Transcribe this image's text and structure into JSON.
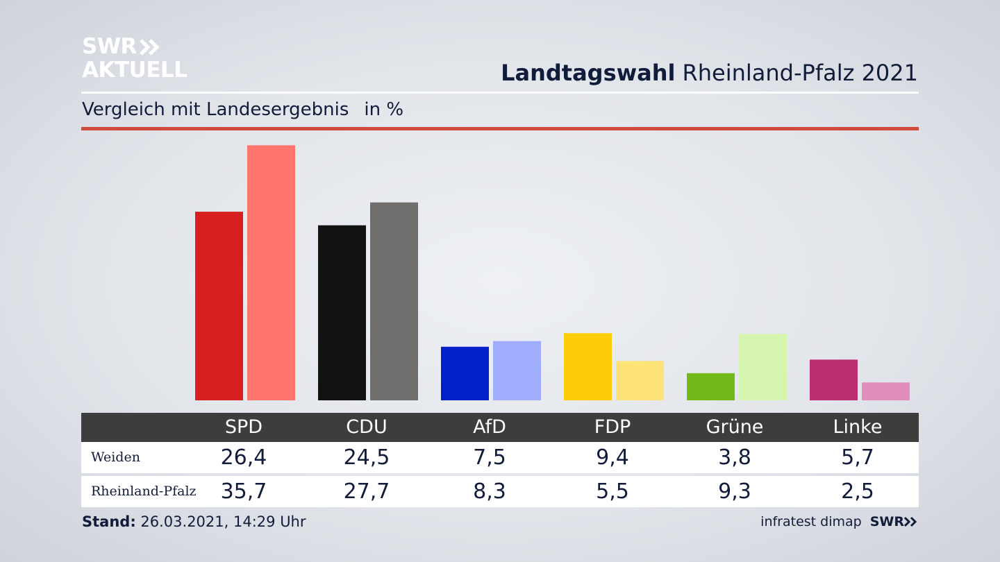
{
  "logo": {
    "line1": "SWR",
    "line2": "AKTUELL"
  },
  "header": {
    "title_bold": "Landtagswahl",
    "title_rest": "Rheinland-Pfalz 2021"
  },
  "subheader": {
    "text": "Vergleich mit Landesergebnis",
    "unit": "in %"
  },
  "colors": {
    "accent_rule": "#cf4a3c"
  },
  "chart_data": {
    "type": "bar",
    "categories": [
      "SPD",
      "CDU",
      "AfD",
      "FDP",
      "Grüne",
      "Linke"
    ],
    "ylim": [
      0,
      37
    ],
    "series": [
      {
        "name": "Weiden",
        "values": [
          26.4,
          24.5,
          7.5,
          9.4,
          3.8,
          5.7
        ],
        "colors": [
          "#d71f1f",
          "#121212",
          "#0021c8",
          "#fdcc0b",
          "#74b91c",
          "#b92f72"
        ]
      },
      {
        "name": "Rheinland-Pfalz",
        "values": [
          35.7,
          27.7,
          8.3,
          5.5,
          9.3,
          2.5
        ],
        "colors": [
          "#ff746d",
          "#706f6d",
          "#a0adfc",
          "#fde278",
          "#d6f5ae",
          "#e08dbb"
        ]
      }
    ]
  },
  "table": {
    "rows": [
      {
        "label": "Weiden",
        "values": [
          "26,4",
          "24,5",
          "7,5",
          "9,4",
          "3,8",
          "5,7"
        ]
      },
      {
        "label": "Rheinland-Pfalz",
        "values": [
          "35,7",
          "27,7",
          "8,3",
          "5,5",
          "9,3",
          "2,5"
        ]
      }
    ]
  },
  "footer": {
    "stand_label": "Stand:",
    "stand_value": "26.03.2021, 14:29 Uhr",
    "source": "infratest dimap",
    "brand": "SWR"
  }
}
